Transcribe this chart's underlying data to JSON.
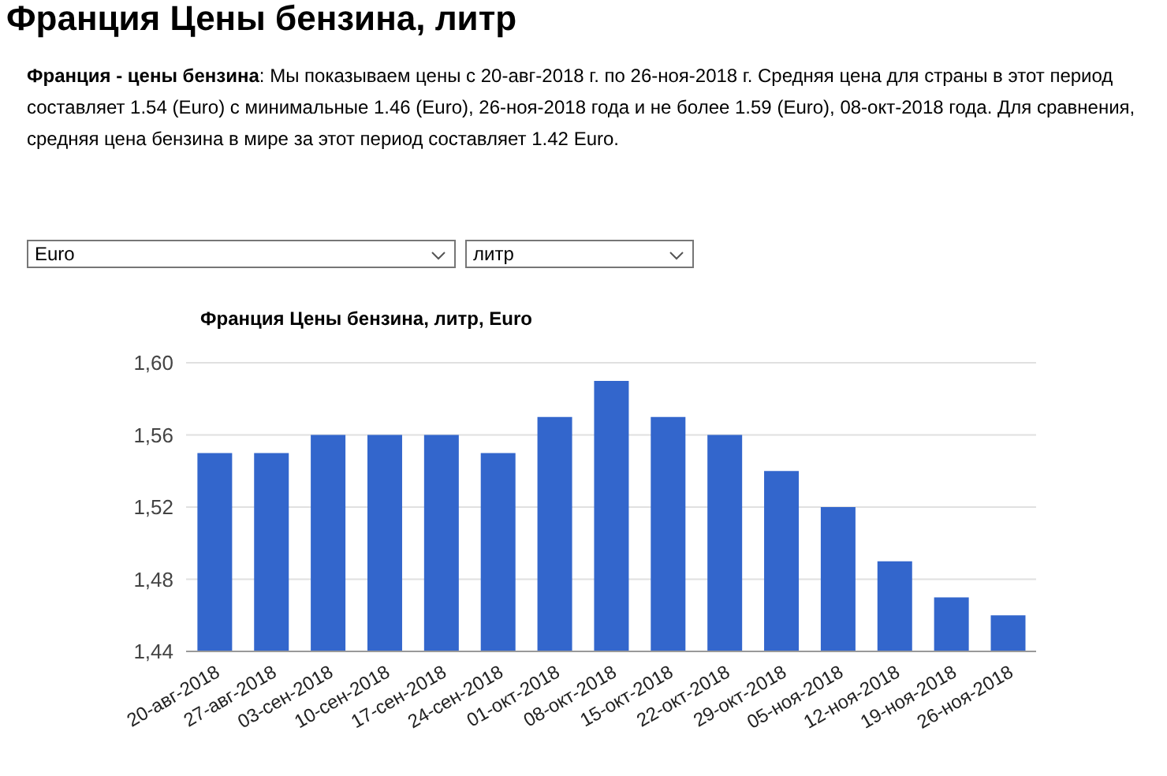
{
  "chart_data": {
    "type": "bar",
    "title": "Франция Цены бензина, литр",
    "subtitle": "Франция - цены бензина: Мы показываем цены с 20-авг-2018 г. по 26-ноя-2018 г. Средняя цена для страны в этот период составляет 1.54 (Euro) с минимальные 1.46 (Euro), 26-ноя-2018 года и не более 1.59 (Euro), 08-окт-2018 года. Для сравнения, средняя цена бензина в мире за этот период составляет 1.42 Euro.",
    "annotations": [
      "Euro",
      "литр",
      "Франция Цены бензина, литр, Euro"
    ],
    "categories": [
      "20-авг-2018",
      "27-авг-2018",
      "03-сен-2018",
      "10-сен-2018",
      "17-сен-2018",
      "24-сен-2018",
      "01-окт-2018",
      "08-окт-2018",
      "15-окт-2018",
      "22-окт-2018",
      "29-окт-2018",
      "05-ноя-2018",
      "12-ноя-2018",
      "19-ноя-2018",
      "26-ноя-2018"
    ],
    "values": [
      1.55,
      1.55,
      1.56,
      1.56,
      1.56,
      1.55,
      1.57,
      1.59,
      1.57,
      1.56,
      1.54,
      1.52,
      1.49,
      1.47,
      1.46
    ],
    "color": "#3366cc",
    "ylim": [
      1.44,
      1.6
    ],
    "yticks": [
      {
        "value": 1.44,
        "label": "1,44"
      },
      {
        "value": 1.48,
        "label": "1,48"
      },
      {
        "value": 1.52,
        "label": "1,52"
      },
      {
        "value": 1.56,
        "label": "1,56"
      },
      {
        "value": 1.6,
        "label": "1,60"
      }
    ],
    "grid": "y"
  }
}
